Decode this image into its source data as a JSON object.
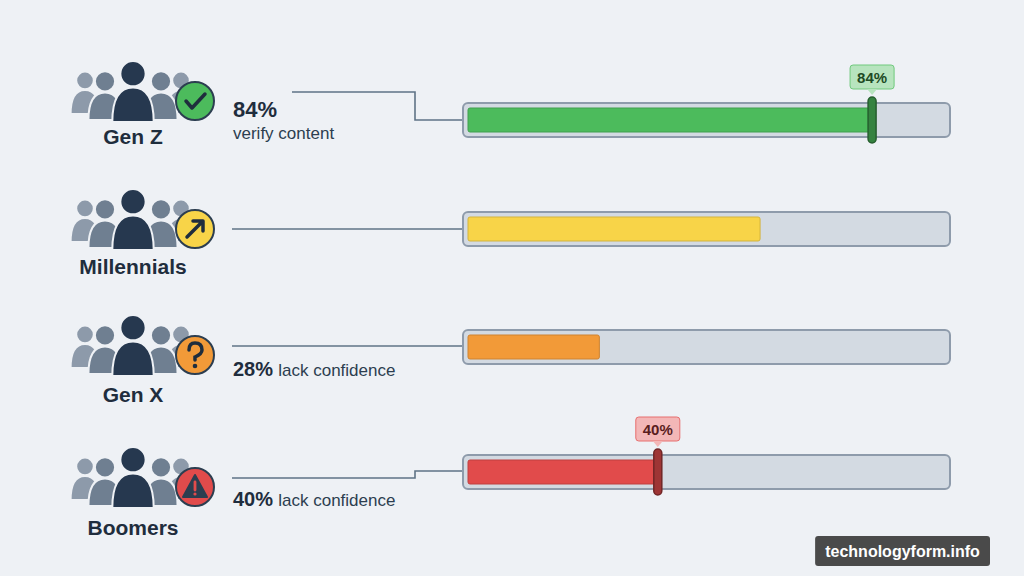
{
  "chart_data": {
    "type": "bar",
    "orientation": "horizontal",
    "categories": [
      "Gen Z",
      "Millennials",
      "Gen X",
      "Boomers"
    ],
    "values": [
      84,
      61,
      28,
      40
    ],
    "value_labels": [
      "84%",
      null,
      "28%",
      "40%"
    ],
    "descriptions": [
      "verify content",
      null,
      "lack confidence",
      "lack confidence"
    ],
    "marker_labels": [
      "84%",
      null,
      null,
      "40%"
    ],
    "colors": [
      "#4cbb5c",
      "#f8d448",
      "#f29a38",
      "#e14b4b"
    ],
    "xlim": [
      0,
      100
    ],
    "tick_labels": false,
    "data_labels": true,
    "source": "technologyform.info"
  }
}
